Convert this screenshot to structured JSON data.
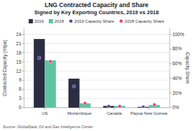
{
  "chart_data": {
    "type": "bar",
    "title": "LNG Contracted Capacity and Share",
    "subtitle": "Signed by Key Exporting Countries, 2019 vs 2018",
    "annotations": [
      "Source: GlobalData, Oil and Gas Intelligence Center"
    ],
    "categories": [
      "US",
      "Mozambique",
      "Canada",
      "Papua New Guinea"
    ],
    "series": [
      {
        "name": "2019",
        "type": "bar",
        "color": "#2b2d42",
        "values": [
          22.5,
          9.5,
          0.55,
          0.25
        ]
      },
      {
        "name": "2018",
        "type": "bar",
        "color": "#5ec4a1",
        "values": [
          15.5,
          1.4,
          0.55,
          0.85
        ]
      },
      {
        "name": "2019 Capacity Share",
        "type": "scatter",
        "axis": "y2",
        "marker": "circle",
        "color": "#5b3fa0",
        "values": [
          0.68,
          0.29,
          0.02,
          0.01
        ]
      },
      {
        "name": "2018 Capacity Share",
        "type": "scatter",
        "axis": "y2",
        "marker": "circle",
        "color": "#e0417f",
        "values": [
          0.63,
          0.06,
          0.02,
          0.04
        ]
      }
    ],
    "ylabel": "Contracted Capacity (mtpa)",
    "y2label": "Capacity Share",
    "ylim": [
      0,
      26
    ],
    "yticks": [
      0,
      3,
      6,
      9,
      12,
      15,
      18,
      21,
      24
    ],
    "y2lim": [
      0,
      1.083
    ],
    "y2ticks": [
      {
        "value": 0.0,
        "label": "0%"
      },
      {
        "value": 0.2,
        "label": "20%"
      },
      {
        "value": 0.4,
        "label": "40%"
      },
      {
        "value": 0.6,
        "label": "60%"
      },
      {
        "value": 0.8,
        "label": "80%"
      },
      {
        "value": 1.0,
        "label": "100%"
      }
    ],
    "grid": true,
    "legend": "top"
  }
}
